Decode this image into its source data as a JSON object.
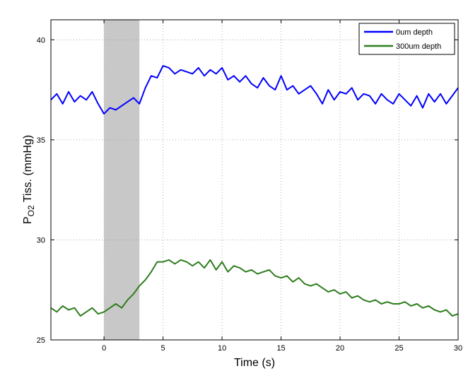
{
  "chart_data": {
    "type": "line",
    "xlabel": "Time (s)",
    "ylabel_main": "P",
    "ylabel_sub": "O2",
    "ylabel_rest": " Tiss. (mmHg)",
    "xlim": [
      -4.5,
      30
    ],
    "ylim": [
      25,
      41
    ],
    "xticks": [
      0,
      5,
      10,
      15,
      20,
      25,
      30
    ],
    "yticks": [
      25,
      30,
      35,
      40
    ],
    "grid": true,
    "legend_position": "top-right",
    "shaded_region": {
      "x0": 0,
      "x1": 3,
      "color": "#c8c8c8"
    },
    "series": [
      {
        "name": "0um depth",
        "color": "#0000ff",
        "x": [
          -4.5,
          -4,
          -3.5,
          -3,
          -2.5,
          -2,
          -1.5,
          -1,
          -0.5,
          0,
          0.5,
          1,
          1.5,
          2,
          2.5,
          3,
          3.5,
          4,
          4.5,
          5,
          5.5,
          6,
          6.5,
          7,
          7.5,
          8,
          8.5,
          9,
          9.5,
          10,
          10.5,
          11,
          11.5,
          12,
          12.5,
          13,
          13.5,
          14,
          14.5,
          15,
          15.5,
          16,
          16.5,
          17,
          17.5,
          18,
          18.5,
          19,
          19.5,
          20,
          20.5,
          21,
          21.5,
          22,
          22.5,
          23,
          23.5,
          24,
          24.5,
          25,
          25.5,
          26,
          26.5,
          27,
          27.5,
          28,
          28.5,
          29,
          29.5,
          30
        ],
        "y": [
          37.0,
          37.3,
          36.8,
          37.4,
          36.9,
          37.2,
          37.0,
          37.4,
          36.8,
          36.3,
          36.6,
          36.5,
          36.7,
          36.9,
          37.1,
          36.8,
          37.6,
          38.2,
          38.1,
          38.7,
          38.6,
          38.3,
          38.5,
          38.4,
          38.3,
          38.6,
          38.2,
          38.5,
          38.3,
          38.6,
          38.0,
          38.2,
          37.9,
          38.2,
          37.8,
          37.6,
          38.1,
          37.7,
          37.5,
          38.2,
          37.5,
          37.7,
          37.3,
          37.5,
          37.7,
          37.3,
          36.8,
          37.5,
          37.0,
          37.4,
          37.3,
          37.6,
          37.0,
          37.3,
          37.2,
          36.8,
          37.3,
          37.0,
          36.8,
          37.3,
          37.0,
          36.7,
          37.2,
          36.6,
          37.3,
          36.9,
          37.3,
          36.8,
          37.2,
          37.6
        ]
      },
      {
        "name": "300um depth",
        "color": "#2e7d1e",
        "x": [
          -4.5,
          -4,
          -3.5,
          -3,
          -2.5,
          -2,
          -1.5,
          -1,
          -0.5,
          0,
          0.5,
          1,
          1.5,
          2,
          2.5,
          3,
          3.5,
          4,
          4.5,
          5,
          5.5,
          6,
          6.5,
          7,
          7.5,
          8,
          8.5,
          9,
          9.5,
          10,
          10.5,
          11,
          11.5,
          12,
          12.5,
          13,
          13.5,
          14,
          14.5,
          15,
          15.5,
          16,
          16.5,
          17,
          17.5,
          18,
          18.5,
          19,
          19.5,
          20,
          20.5,
          21,
          21.5,
          22,
          22.5,
          23,
          23.5,
          24,
          24.5,
          25,
          25.5,
          26,
          26.5,
          27,
          27.5,
          28,
          28.5,
          29,
          29.5,
          30
        ],
        "y": [
          26.6,
          26.4,
          26.7,
          26.5,
          26.6,
          26.2,
          26.4,
          26.6,
          26.3,
          26.4,
          26.6,
          26.8,
          26.6,
          27.0,
          27.3,
          27.7,
          28.0,
          28.4,
          28.9,
          28.9,
          29.0,
          28.8,
          29.0,
          28.9,
          28.7,
          28.9,
          28.6,
          29.0,
          28.5,
          28.9,
          28.4,
          28.7,
          28.6,
          28.4,
          28.5,
          28.3,
          28.4,
          28.5,
          28.2,
          28.1,
          28.2,
          27.9,
          28.1,
          27.8,
          27.7,
          27.8,
          27.6,
          27.4,
          27.5,
          27.3,
          27.4,
          27.1,
          27.2,
          27.0,
          26.9,
          27.0,
          26.8,
          26.9,
          26.8,
          26.8,
          26.9,
          26.7,
          26.8,
          26.6,
          26.7,
          26.5,
          26.4,
          26.5,
          26.2,
          26.3
        ]
      }
    ]
  }
}
